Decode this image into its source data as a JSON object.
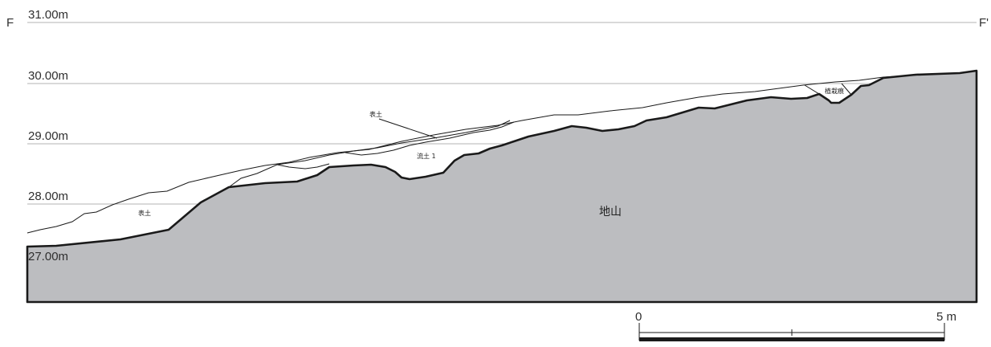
{
  "section": {
    "left_label": "F",
    "right_label": "F'"
  },
  "elevations": [
    {
      "label": "31.00m"
    },
    {
      "label": "30.00m"
    },
    {
      "label": "29.00m"
    },
    {
      "label": "28.00m"
    },
    {
      "label": "27.00m"
    }
  ],
  "layers": {
    "topsoil_left": "表土",
    "topsoil_upper": "表土",
    "flow_soil": "流土 1",
    "planting_trace": "植栽痕",
    "subsoil": "地山"
  },
  "scale": {
    "start": "0",
    "end": "5 m"
  },
  "colors": {
    "subsoil_fill": "#bcbdc0",
    "line": "#1a1a1a",
    "guide": "#9a9a9a"
  }
}
